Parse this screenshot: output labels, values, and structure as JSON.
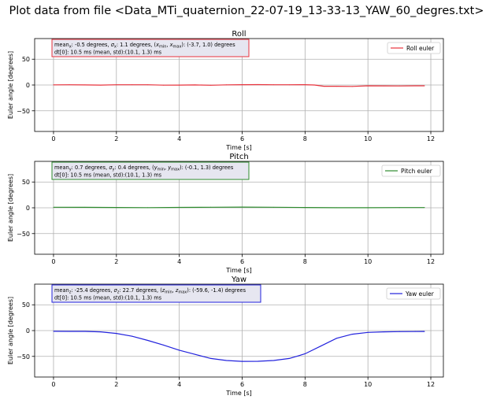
{
  "figure_title": "Plot data from file <Data_MTi_quaternion_22-07-19_13-33-13_YAW_60_degres.txt>",
  "chart_data": [
    {
      "type": "line",
      "title": "Roll",
      "xlabel": "Time [s]",
      "ylabel": "Euler angle [degrees]",
      "xlim": [
        -0.6,
        12.4
      ],
      "ylim": [
        -90,
        90
      ],
      "xticks": [
        "0",
        "2",
        "4",
        "6",
        "8",
        "10",
        "12"
      ],
      "yticks": [
        "50",
        "0",
        "−50"
      ],
      "grid": true,
      "legend_position": "top-right",
      "stats_box": {
        "prefix": "mean",
        "var": "x",
        "mean": ": -0.5 degrees, ",
        "sigma_mid": ": 1.1 degrees, (",
        "range_close": "): (-3.7, 1.0) degrees",
        "line2": "dt[0]: 10.5 ms (mean, std):(10.1, 1.3) ms",
        "border": "#e8323c"
      },
      "series": [
        {
          "name": "Roll euler",
          "color": "#e8323c",
          "x": [
            0,
            0.5,
            1,
            1.5,
            2,
            2.5,
            3,
            3.5,
            4,
            4.5,
            5,
            5.5,
            6,
            6.5,
            7,
            7.5,
            8,
            8.3,
            8.6,
            9,
            9.5,
            10,
            10.5,
            11,
            11.5,
            11.8
          ],
          "y": [
            0.3,
            0.5,
            0.2,
            -0.2,
            0.4,
            0.5,
            0.4,
            -0.3,
            -0.1,
            0.2,
            -0.4,
            0.3,
            0.6,
            0.7,
            0.5,
            0.4,
            0.6,
            0,
            -2.5,
            -2.5,
            -2.8,
            -1.5,
            -1.7,
            -1.8,
            -1.6,
            -1.5
          ]
        }
      ]
    },
    {
      "type": "line",
      "title": "Pitch",
      "xlabel": "Time [s]",
      "ylabel": "Euler angle [degrees]",
      "xlim": [
        -0.6,
        12.4
      ],
      "ylim": [
        -90,
        90
      ],
      "xticks": [
        "0",
        "2",
        "4",
        "6",
        "8",
        "10",
        "12"
      ],
      "yticks": [
        "50",
        "0",
        "−50"
      ],
      "grid": true,
      "legend_position": "top-right",
      "stats_box": {
        "prefix": "mean",
        "var": "y",
        "mean": ": 0.7 degrees, ",
        "sigma_mid": ": 0.4 degrees, (",
        "range_close": "): (-0.1, 1.3) degrees",
        "line2": "dt[0]: 10.5 ms (mean, std):(10.1, 1.3) ms",
        "border": "#2e8b2e"
      },
      "series": [
        {
          "name": "Pitch euler",
          "color": "#2e8b2e",
          "x": [
            0,
            1,
            2,
            3,
            4,
            5,
            6,
            7,
            8,
            9,
            10,
            11,
            11.8
          ],
          "y": [
            1.0,
            0.9,
            0.6,
            0.3,
            0.7,
            1.1,
            1.3,
            1.0,
            0.6,
            0.1,
            0.2,
            0.4,
            0.5
          ]
        }
      ]
    },
    {
      "type": "line",
      "title": "Yaw",
      "xlabel": "Time [s]",
      "ylabel": "Euler angle [degrees]",
      "xlim": [
        -0.6,
        12.4
      ],
      "ylim": [
        -90,
        90
      ],
      "xticks": [
        "0",
        "2",
        "4",
        "6",
        "8",
        "10",
        "12"
      ],
      "yticks": [
        "50",
        "0",
        "−50"
      ],
      "grid": true,
      "legend_position": "top-right",
      "stats_box": {
        "prefix": "mean",
        "var": "z",
        "mean": ": -25.4 degrees, ",
        "sigma_mid": ": 22.7 degrees, (",
        "range_close": "): (-59.6, -1.4) degrees",
        "line2": "dt[0]: 10.5 ms (mean, std):(10.1, 1.3) ms",
        "border": "#2222dd"
      },
      "series": [
        {
          "name": "Yaw euler",
          "color": "#2222dd",
          "x": [
            0,
            0.5,
            1,
            1.5,
            2,
            2.5,
            3,
            3.5,
            4,
            4.5,
            5,
            5.5,
            6,
            6.5,
            7,
            7.5,
            8,
            8.5,
            9,
            9.5,
            10,
            10.5,
            11,
            11.5,
            11.8
          ],
          "y": [
            -1.4,
            -1.5,
            -1.6,
            -2.5,
            -5.5,
            -11,
            -19,
            -28,
            -38,
            -46,
            -54,
            -58,
            -59.6,
            -59.5,
            -58,
            -54,
            -45,
            -30,
            -15,
            -7,
            -3.5,
            -2.5,
            -2,
            -1.8,
            -1.7
          ]
        }
      ]
    }
  ]
}
